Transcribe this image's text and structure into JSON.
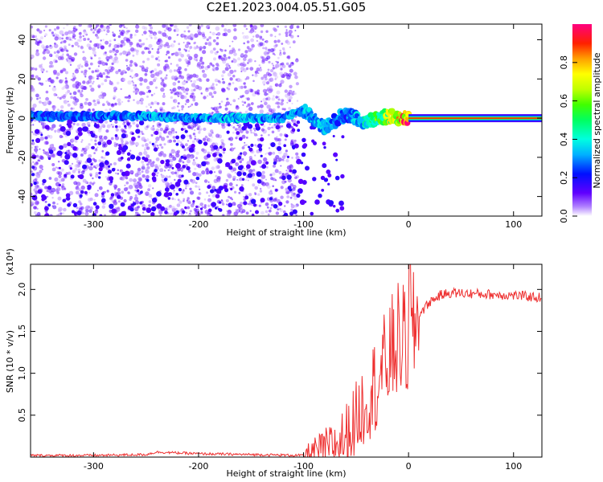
{
  "title": "C2E1.2023.004.05.51.G05",
  "chart_data": [
    {
      "type": "heatmap",
      "xlabel": "Height of straight line (km)",
      "ylabel": "Frequency (Hz)",
      "xlim": [
        -360,
        127
      ],
      "ylim": [
        -50,
        48
      ],
      "xticks": [
        -300,
        -200,
        -100,
        0,
        100
      ],
      "yticks": [
        -40,
        -20,
        0,
        20,
        40
      ],
      "colorbar": {
        "label": "Normalized spectral amplitude",
        "range": [
          0,
          1
        ],
        "ticks": [
          0.0,
          0.2,
          0.4,
          0.6,
          0.8
        ]
      },
      "ridge": [
        {
          "x": -360,
          "y": 1,
          "amp": 0.3
        },
        {
          "x": -300,
          "y": 1,
          "amp": 0.3
        },
        {
          "x": -250,
          "y": 1,
          "amp": 0.35
        },
        {
          "x": -200,
          "y": 0,
          "amp": 0.35
        },
        {
          "x": -150,
          "y": 0,
          "amp": 0.4
        },
        {
          "x": -120,
          "y": 0,
          "amp": 0.35
        },
        {
          "x": -100,
          "y": 4,
          "amp": 0.35
        },
        {
          "x": -80,
          "y": -5,
          "amp": 0.4
        },
        {
          "x": -60,
          "y": 2,
          "amp": 0.3
        },
        {
          "x": -40,
          "y": -2,
          "amp": 0.45
        },
        {
          "x": -20,
          "y": 1,
          "amp": 0.7
        },
        {
          "x": 0,
          "y": 0,
          "amp": 0.95
        },
        {
          "x": 127,
          "y": 0,
          "amp": 0.95
        }
      ],
      "grid": false
    },
    {
      "type": "line",
      "xlabel": "Height of straight line (km)",
      "ylabel": "SNR (10 * v/v)",
      "yscale_label": "(x10⁴)",
      "xlim": [
        -360,
        127
      ],
      "ylim": [
        0,
        2.3
      ],
      "xticks": [
        -300,
        -200,
        -100,
        0,
        100
      ],
      "yticks": [
        0.5,
        1.0,
        1.5,
        2.0
      ],
      "series": [
        {
          "color": "#ee3030",
          "x": [
            -360,
            -300,
            -250,
            -240,
            -200,
            -150,
            -100,
            -85,
            -70,
            -60,
            -50,
            -40,
            -30,
            -20,
            -10,
            0,
            10,
            20,
            30,
            40,
            60,
            80,
            100,
            127
          ],
          "y": [
            0.02,
            0.02,
            0.03,
            0.06,
            0.04,
            0.03,
            0.02,
            0.08,
            0.14,
            0.25,
            0.45,
            0.7,
            0.9,
            1.15,
            1.4,
            1.35,
            1.7,
            1.85,
            1.93,
            1.96,
            1.95,
            1.94,
            1.93,
            1.9
          ]
        }
      ],
      "grid": false
    }
  ]
}
